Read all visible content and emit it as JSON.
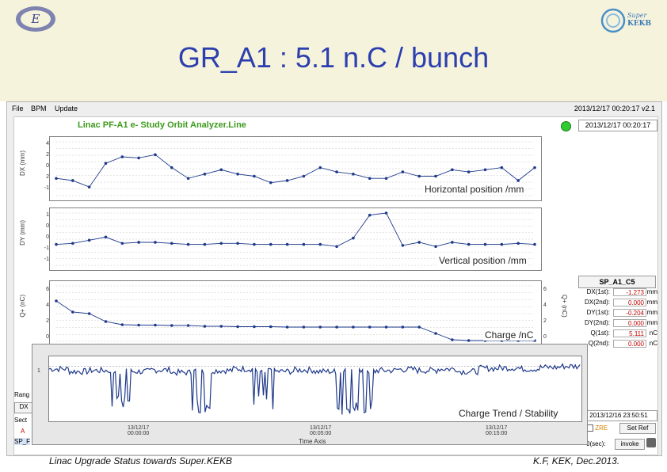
{
  "title": "GR_A1 : 5.1 n.C / bunch",
  "footer": {
    "left": "Linac Upgrade Status towards Super.KEKB",
    "right": "K.F, KEK, Dec.2013."
  },
  "logos": {
    "left": "kek-logo-icon",
    "right": "superkekb-logo-icon",
    "superkekb_text": "Super KEKB"
  },
  "window": {
    "menu": [
      "File",
      "BPM",
      "Update"
    ],
    "datetime": "2013/12/17 00:20:17   v2.1",
    "app_title": "Linac PF-A1 e- Study Orbit Analyzer.Line",
    "datetime_box": "2013/12/17 00:20:17"
  },
  "plots": {
    "dx": {
      "label": "Horizontal position /mm",
      "ylabel": "DX (mm)",
      "ticks": [
        "4",
        "2",
        "0",
        "2",
        "-1"
      ]
    },
    "dy": {
      "label": "Vertical position /mm",
      "ylabel": "DY (mm)",
      "ticks": [
        "1",
        "0",
        "0",
        "-1",
        "-1"
      ]
    },
    "q": {
      "label": "Charge /nC",
      "ylabel": "Q+ (nC)",
      "ylabel_right": "Q+ (nC)",
      "ticks": [
        "6",
        "4",
        "2",
        "0"
      ],
      "ticks_right": [
        "6",
        "4",
        "2",
        "0"
      ]
    }
  },
  "side_panel": {
    "header": "SP_A1_C5",
    "rows": [
      {
        "label": "DX(1st):",
        "value": "-1.273",
        "unit": "mm"
      },
      {
        "label": "DX(2nd):",
        "value": "0.000",
        "unit": "mm"
      },
      {
        "label": "DY(1st):",
        "value": "-0.204",
        "unit": "mm"
      },
      {
        "label": "DY(2nd):",
        "value": "0.000",
        "unit": "mm"
      },
      {
        "label": "Q(1st):",
        "value": "5.111",
        "unit": "nC"
      },
      {
        "label": "Q(2nd):",
        "value": "0.000",
        "unit": "nC"
      }
    ],
    "date_field": "2013/12/16 23:50:51",
    "ref_checkbox": "ZRE",
    "set_ref_button": "Set Ref",
    "sec_label": "0(sec):",
    "invoke_button": "invoke"
  },
  "left_stub": {
    "range": "Rang",
    "dx": "DX",
    "sect": "Sect",
    "a_item": "A",
    "sp_item": "SP_F"
  },
  "trend": {
    "label": "Charge Trend / Stability",
    "ytick": "1",
    "x_ticks": [
      "13/12/17\n00:00:00",
      "13/12/17\n00:05:00",
      "13/12/17\n00:15:00"
    ],
    "x_axis_label": "Time Axis"
  },
  "colors": {
    "title": "#2c3fae",
    "trace": "#1f3a8a",
    "panel_values": "#c00000",
    "app_title": "#3c9a1c",
    "band": "#f6f3dc"
  },
  "chart_data": [
    {
      "type": "line",
      "title": "Horizontal position /mm",
      "ylabel": "DX (mm)",
      "x": [
        1,
        2,
        3,
        4,
        5,
        6,
        7,
        8,
        9,
        10,
        11,
        12,
        13,
        14,
        15,
        16,
        17,
        18,
        19,
        20,
        21,
        22,
        23,
        24,
        25,
        26,
        27,
        28,
        29,
        30
      ],
      "series": [
        {
          "values": [
            0.6,
            0.4,
            -0.2,
            2.0,
            2.6,
            2.5,
            2.8,
            1.6,
            0.6,
            1.0,
            1.4,
            1.0,
            0.8,
            0.2,
            0.4,
            0.8,
            1.6,
            1.2,
            1.0,
            0.6,
            0.6,
            1.2,
            0.8,
            0.8,
            1.4,
            1.2,
            1.4,
            1.6,
            0.4,
            1.6
          ]
        }
      ],
      "ylim": [
        -1,
        4
      ],
      "grid": true
    },
    {
      "type": "line",
      "title": "Vertical position /mm",
      "ylabel": "DY (mm)",
      "x": [
        1,
        2,
        3,
        4,
        5,
        6,
        7,
        8,
        9,
        10,
        11,
        12,
        13,
        14,
        15,
        16,
        17,
        18,
        19,
        20,
        21,
        22,
        23,
        24,
        25,
        26,
        27,
        28,
        29,
        30
      ],
      "series": [
        {
          "values": [
            0.0,
            0.05,
            0.2,
            0.35,
            0.05,
            0.1,
            0.1,
            0.05,
            0.0,
            0.0,
            0.05,
            0.05,
            0.0,
            0.0,
            0.0,
            0.0,
            0.0,
            -0.1,
            0.3,
            1.4,
            1.5,
            -0.05,
            0.1,
            -0.1,
            0.1,
            0.0,
            0.0,
            0.0,
            0.05,
            0.0
          ]
        }
      ],
      "ylim": [
        -1,
        1.5
      ],
      "grid": true
    },
    {
      "type": "line",
      "title": "Charge /nC",
      "ylabel": "Q+ (nC)",
      "x": [
        1,
        2,
        3,
        4,
        5,
        6,
        7,
        8,
        9,
        10,
        11,
        12,
        13,
        14,
        15,
        16,
        17,
        18,
        19,
        20,
        21,
        22,
        23,
        24,
        25,
        26,
        27,
        28,
        29,
        30
      ],
      "series": [
        {
          "values": [
            5.1,
            3.7,
            3.5,
            2.5,
            2.1,
            2.05,
            2.05,
            2.0,
            2.0,
            1.9,
            1.9,
            1.85,
            1.85,
            1.85,
            1.8,
            1.8,
            1.8,
            1.8,
            1.8,
            1.8,
            1.8,
            1.8,
            1.8,
            1.0,
            0.2,
            0.1,
            0.1,
            0.1,
            0.1,
            0.1
          ]
        }
      ],
      "ylim": [
        0,
        7
      ],
      "grid": true
    },
    {
      "type": "line",
      "title": "Charge Trend / Stability",
      "xlabel": "Time Axis",
      "series": [
        {
          "values": [
            0.95,
            0.9,
            0.92,
            0.2,
            0.9,
            0.93,
            0.88,
            0.1,
            0.92,
            0.95,
            0.15,
            0.9,
            0.93,
            0.9,
            0.05,
            0.08,
            0.92,
            0.94,
            0.92,
            0.95,
            0.9,
            0.96,
            0.97,
            0.95,
            0.98,
            1.0
          ]
        }
      ],
      "ylim": [
        0,
        1.1
      ]
    }
  ]
}
